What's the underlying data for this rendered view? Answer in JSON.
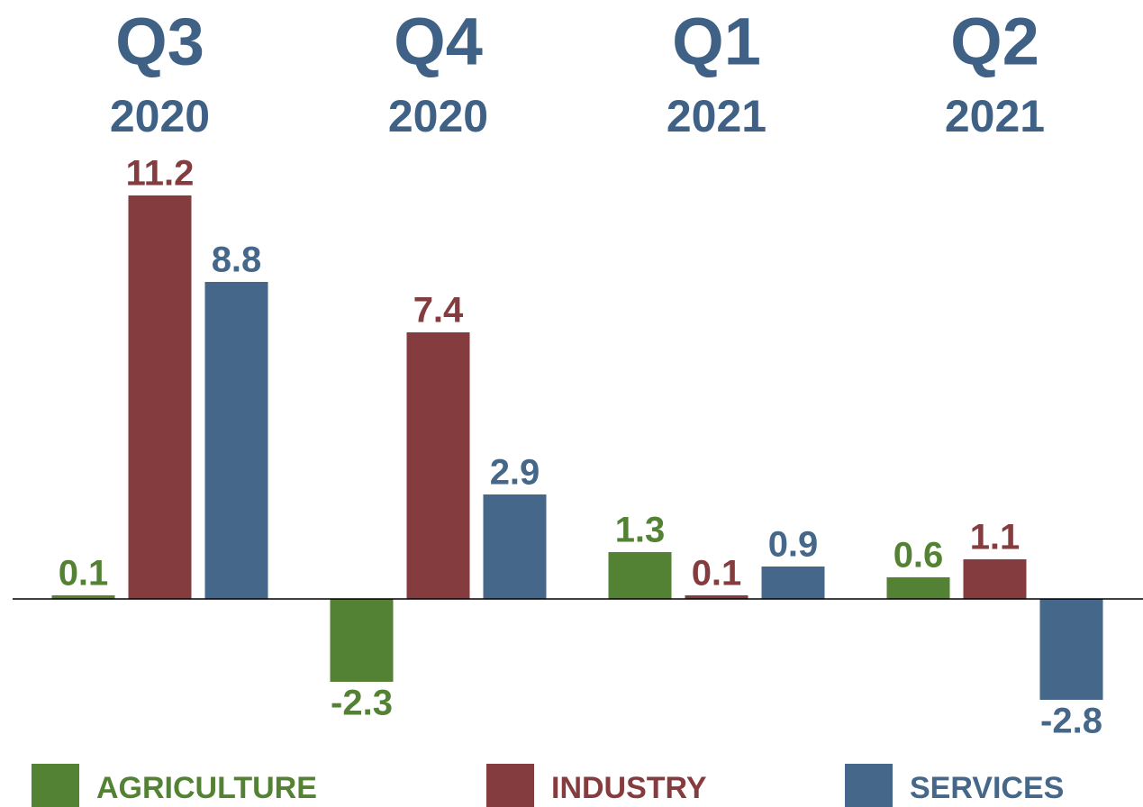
{
  "chart_data": {
    "type": "bar",
    "categories": [
      "Q3",
      "Q4",
      "Q1",
      "Q2"
    ],
    "category_years": [
      "2020",
      "2020",
      "2021",
      "2021"
    ],
    "series": [
      {
        "name": "AGRICULTURE",
        "color": "#548235",
        "values": [
          0.1,
          -2.3,
          1.3,
          0.6
        ]
      },
      {
        "name": "INDUSTRY",
        "color": "#843c3f",
        "values": [
          11.2,
          7.4,
          0.1,
          1.1
        ]
      },
      {
        "name": "SERVICES",
        "color": "#44678a",
        "values": [
          8.8,
          2.9,
          0.9,
          -2.8
        ]
      }
    ],
    "category_color": "#3e6185",
    "ylim": [
      -4.5,
      12
    ],
    "legend": "bottom"
  }
}
